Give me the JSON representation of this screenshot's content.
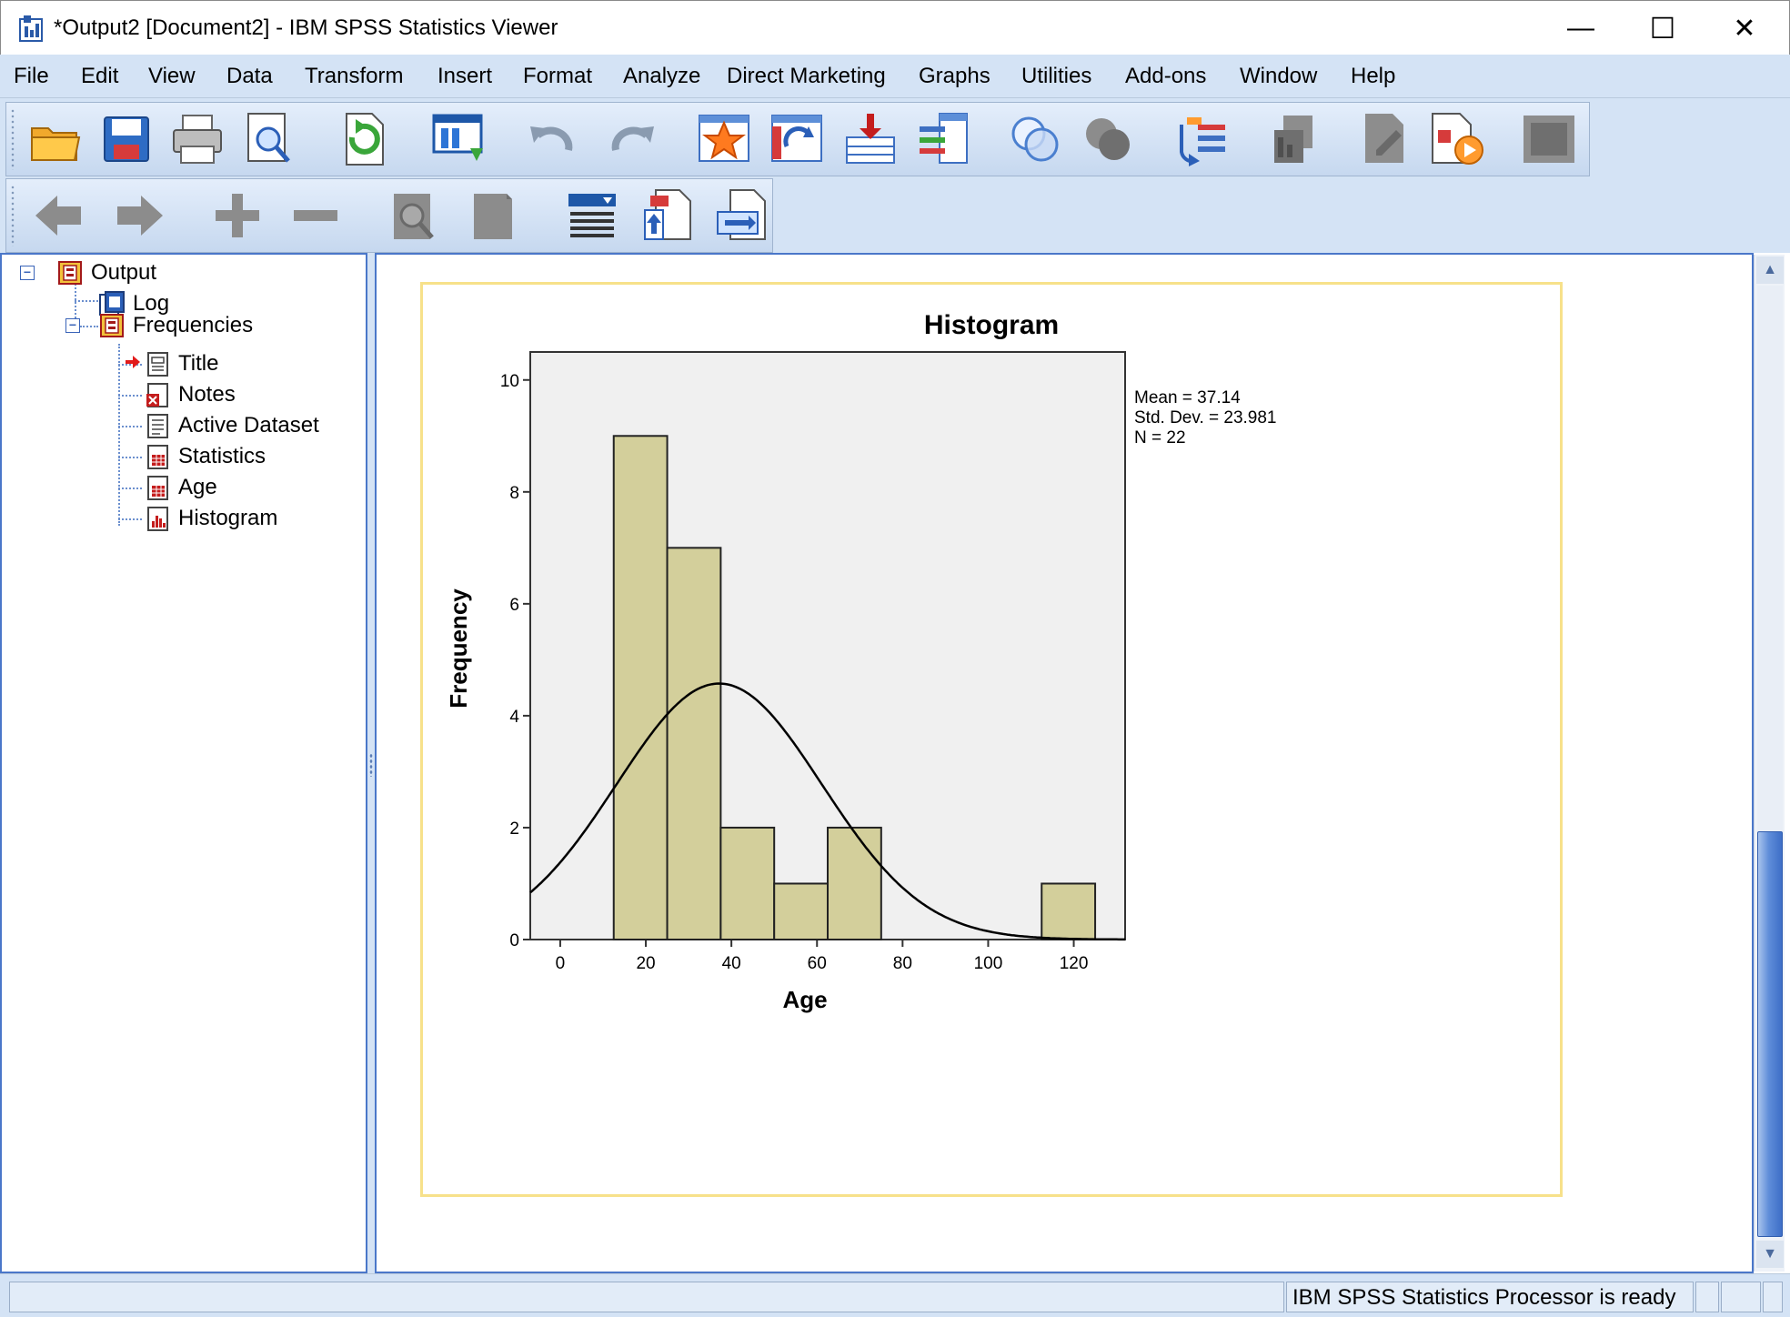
{
  "window": {
    "title": "*Output2 [Document2] - IBM SPSS Statistics Viewer",
    "minimize": "—",
    "maximize": "☐",
    "close": "✕"
  },
  "menu": [
    "File",
    "Edit",
    "View",
    "Data",
    "Transform",
    "Insert",
    "Format",
    "Analyze",
    "Direct Marketing",
    "Graphs",
    "Utilities",
    "Add-ons",
    "Window",
    "Help"
  ],
  "toolbar1": [
    "open-icon",
    "save-icon",
    "print-icon",
    "print-preview-icon",
    "export-icon",
    "recall-dialog-icon",
    "undo-icon",
    "redo-icon",
    "go-to-data-icon",
    "go-to-case-icon",
    "go-to-variable-icon",
    "variables-icon",
    "select-cases-icon",
    "weight-cases-icon",
    "value-labels-icon",
    "use-variable-sets-icon",
    "show-all-variables-icon",
    "spelling-icon",
    "run-descriptives-icon"
  ],
  "toolbar2": [
    "back-arrow-icon",
    "forward-arrow-icon",
    "expand-icon",
    "collapse-icon",
    "show-icon",
    "hide-icon",
    "insert-heading-icon",
    "insert-title-icon",
    "insert-text-icon"
  ],
  "outline": {
    "root": "Output",
    "log": "Log",
    "frequencies": "Frequencies",
    "children": [
      "Title",
      "Notes",
      "Active Dataset",
      "Statistics",
      "Age",
      "Histogram"
    ]
  },
  "status": {
    "text": "IBM SPSS Statistics Processor is ready"
  },
  "chart_data": {
    "type": "bar",
    "title": "Histogram",
    "xlabel": "Age",
    "ylabel": "Frequency",
    "bins": [
      {
        "start": 12.5,
        "end": 25,
        "count": 9
      },
      {
        "start": 25,
        "end": 37.5,
        "count": 7
      },
      {
        "start": 37.5,
        "end": 50,
        "count": 2
      },
      {
        "start": 50,
        "end": 62.5,
        "count": 1
      },
      {
        "start": 62.5,
        "end": 75,
        "count": 2
      },
      {
        "start": 112.5,
        "end": 125,
        "count": 1
      }
    ],
    "xlim": [
      -7,
      132
    ],
    "ylim": [
      0,
      10.5
    ],
    "xticks": [
      0,
      20,
      40,
      60,
      80,
      100,
      120
    ],
    "yticks": [
      0,
      2,
      4,
      6,
      8,
      10
    ],
    "normal_curve": {
      "mean": 37.14,
      "sd": 23.981,
      "n": 22,
      "bin_width": 12.5
    },
    "stats_lines": [
      "Mean = 37.14",
      "Std. Dev. = 23.981",
      "N = 22"
    ],
    "bar_color": "#d3cf9b",
    "plot_bg": "#f0f0f0"
  }
}
